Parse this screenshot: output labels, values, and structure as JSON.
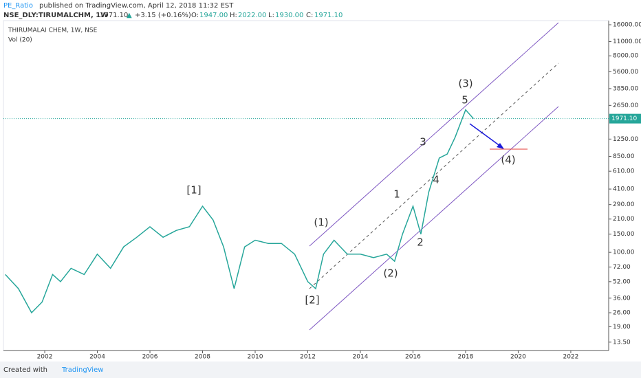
{
  "header": {
    "author": "PE_Ratio",
    "published": "published on TradingView.com, April 12, 2018 11:32 EST",
    "symbol": "NSE_DLY:TIRUMALCHM, 1W",
    "price": "1971.10",
    "arrow": "▲",
    "change": "+3.15 (+0.16%)",
    "o_label": "O:",
    "o": "1947.00",
    "h_label": "H:",
    "h": "2022.00",
    "l_label": "L:",
    "l": "1930.00",
    "c_label": "C:",
    "c": "1971.10"
  },
  "chart_data": {
    "type": "line",
    "title": "THIRUMALAI CHEM, 1W, NSE",
    "subtitle": "Vol (20)",
    "y_scale": "log",
    "grid": false,
    "x": [
      2000.5,
      2001.0,
      2001.5,
      2001.9,
      2002.3,
      2002.6,
      2003.0,
      2003.5,
      2004.0,
      2004.5,
      2005.0,
      2005.5,
      2006.0,
      2006.5,
      2007.0,
      2007.5,
      2008.0,
      2008.4,
      2008.8,
      2009.2,
      2009.6,
      2010.0,
      2010.5,
      2011.0,
      2011.5,
      2012.0,
      2012.3,
      2012.6,
      2013.0,
      2013.5,
      2014.0,
      2014.5,
      2015.0,
      2015.3,
      2015.6,
      2016.0,
      2016.3,
      2016.6,
      2017.0,
      2017.3,
      2017.6,
      2018.0,
      2018.3
    ],
    "series": [
      {
        "name": "TIRUMALCHM",
        "color": "#26a69a",
        "values": [
          61,
          44.5,
          26,
          33,
          61,
          52,
          70,
          61,
          96,
          70,
          113,
          140,
          177,
          140,
          163,
          177,
          280,
          206,
          113,
          44.5,
          113,
          131,
          122,
          122,
          96,
          52,
          44.5,
          96,
          131,
          96,
          96,
          89,
          96,
          82,
          150,
          280,
          150,
          383,
          820,
          894,
          1300,
          2400,
          1971.1
        ]
      }
    ],
    "xlim": [
      2000.43,
      2023.44
    ],
    "xticks": [
      2002,
      2004,
      2006,
      2008,
      2010,
      2012,
      2014,
      2016,
      2018,
      2020,
      2022
    ],
    "ylim": [
      11.2,
      17540
    ],
    "yticks": [
      {
        "value": 13.5,
        "label": "13.50"
      },
      {
        "value": 19,
        "label": "19.00"
      },
      {
        "value": 26,
        "label": "26.00"
      },
      {
        "value": 36,
        "label": "36.00"
      },
      {
        "value": 52,
        "label": "52.00"
      },
      {
        "value": 72,
        "label": "72.00"
      },
      {
        "value": 100,
        "label": "100.00"
      },
      {
        "value": 150,
        "label": "150.00"
      },
      {
        "value": 210,
        "label": "210.00"
      },
      {
        "value": 290,
        "label": "290.00"
      },
      {
        "value": 410,
        "label": "410.00"
      },
      {
        "value": 610,
        "label": "610.00"
      },
      {
        "value": 850,
        "label": "850.00"
      },
      {
        "value": 1250,
        "label": "1250.00"
      },
      {
        "value": 2650,
        "label": "2650.00"
      },
      {
        "value": 3850,
        "label": "3850.00"
      },
      {
        "value": 5600,
        "label": "5600.00"
      },
      {
        "value": 8000,
        "label": "8000.00"
      },
      {
        "value": 11000,
        "label": "11000.00"
      },
      {
        "value": 16000,
        "label": "16000.00"
      }
    ],
    "last_price": {
      "value": 1971.1,
      "label": "1971.10"
    },
    "annotations": [
      "[1]",
      "[2]",
      "(1)",
      "(2)",
      "(3)",
      "(4)",
      "1",
      "2",
      "3",
      "4",
      "5"
    ]
  },
  "footer": {
    "created": "Created with",
    "brand": "TradingView"
  }
}
